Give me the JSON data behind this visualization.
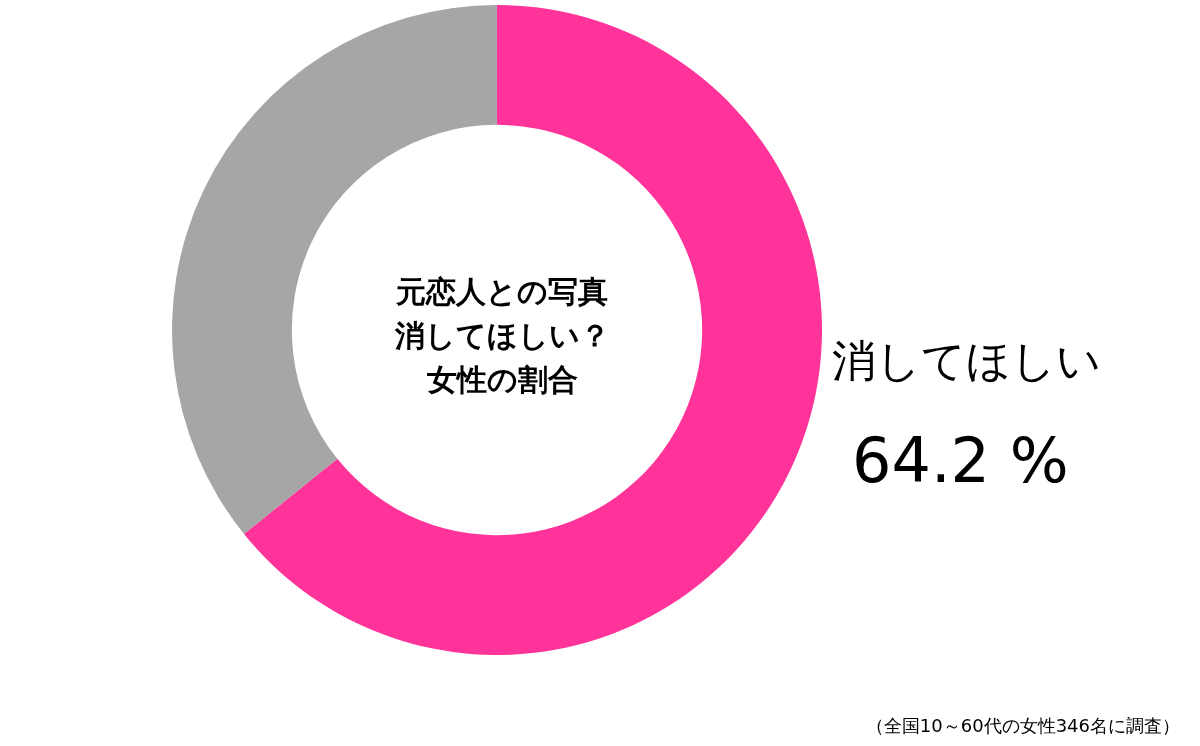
{
  "chart_data": {
    "type": "donut",
    "title": "元恋人との写真消してほしい？女性の割合",
    "categories": [
      "消してほしい",
      null
    ],
    "values": [
      64.2,
      35.8
    ],
    "colors": [
      "#ff3399",
      "#a6a6a6"
    ],
    "value_labels": [
      "64.2 %",
      null
    ],
    "legend": false,
    "annotations": [
      "（全国10～60代の女性346名に調査）"
    ]
  }
}
